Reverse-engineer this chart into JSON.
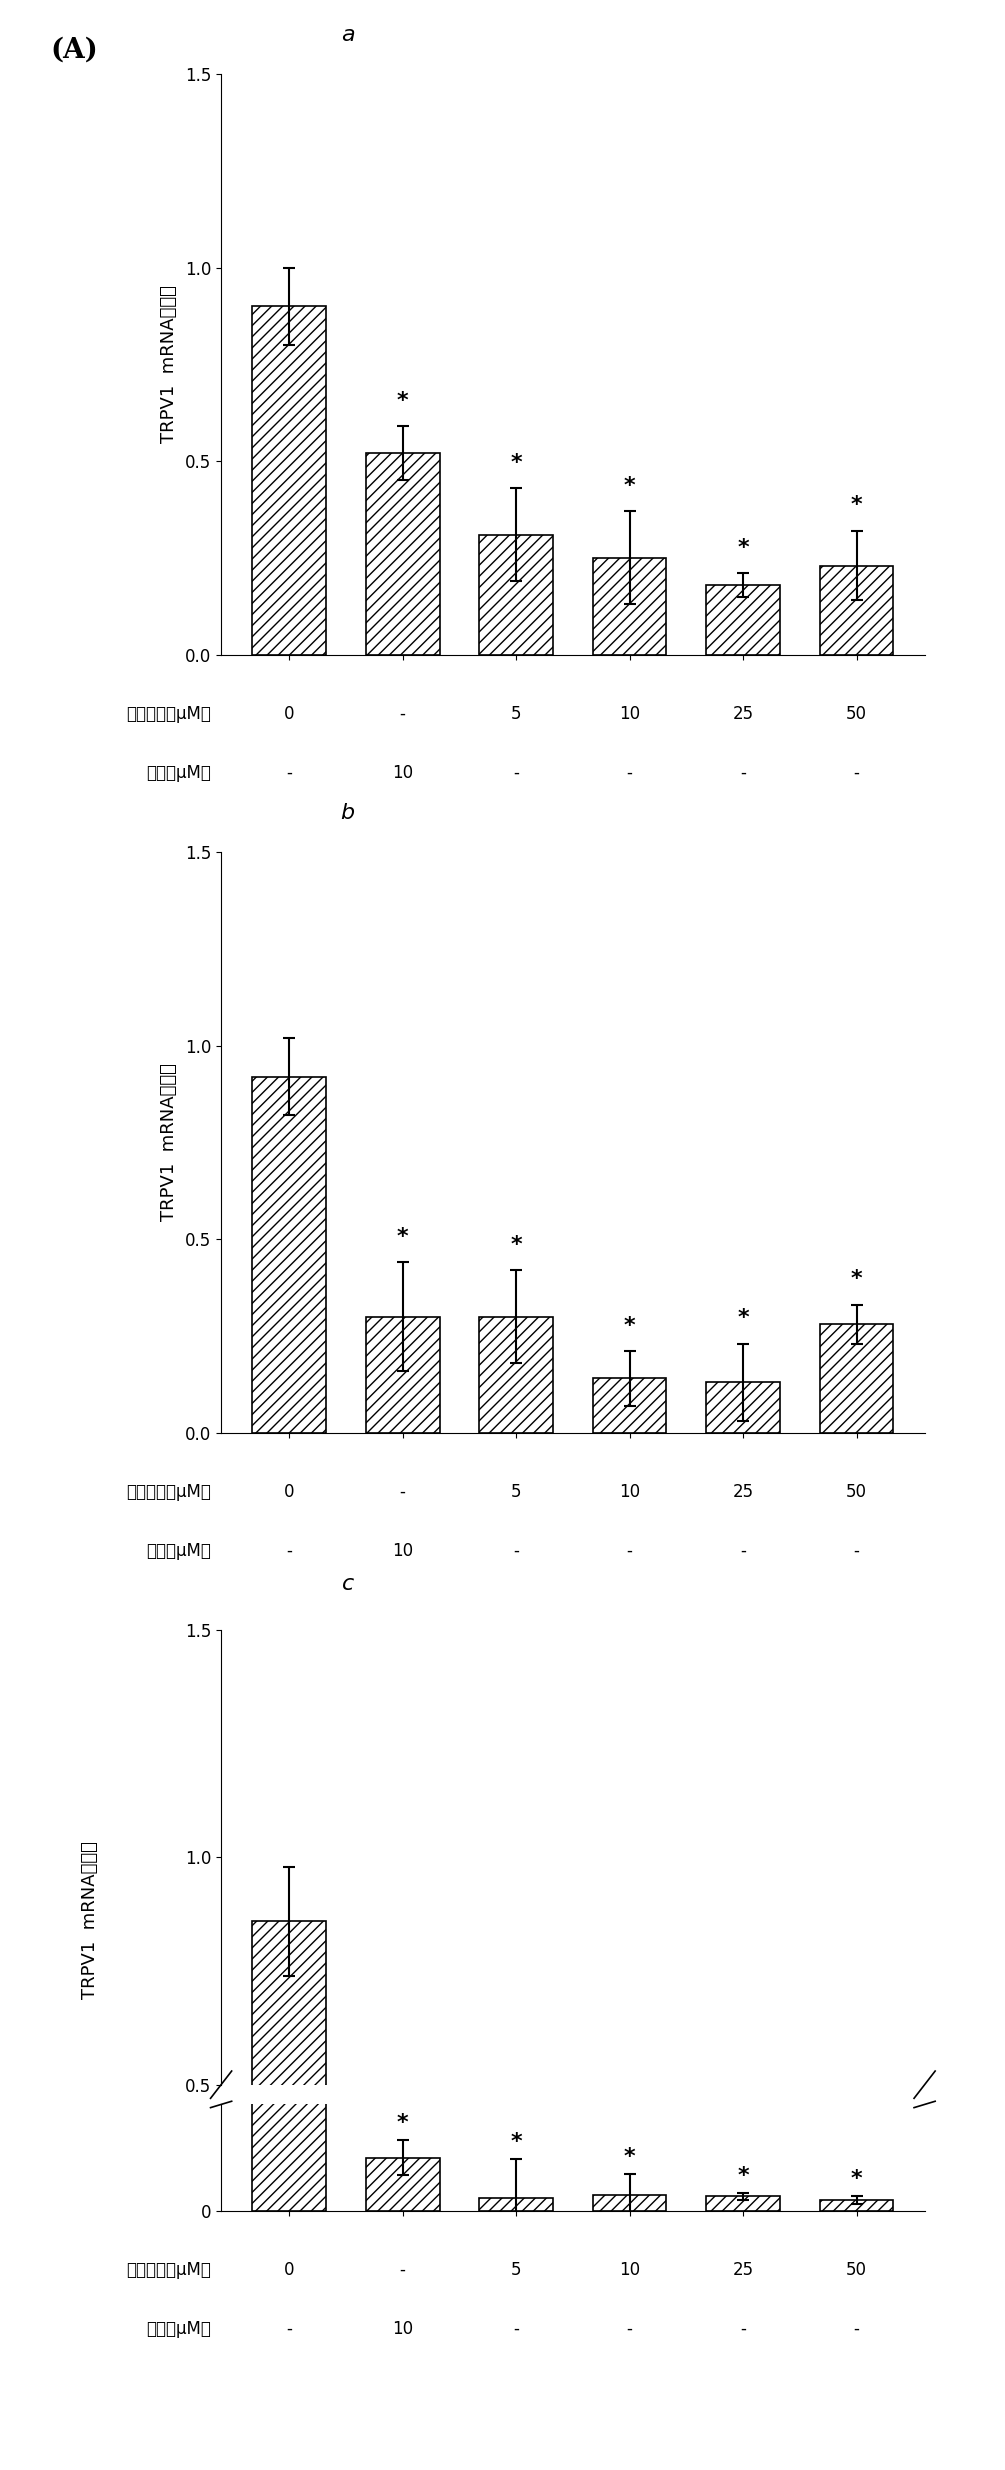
{
  "panel_label": "(A)",
  "subplot_labels": [
    "a",
    "b",
    "c"
  ],
  "x_labels_row1": [
    "0",
    "-",
    "5",
    "10",
    "25",
    "50"
  ],
  "x_labels_row2": [
    "-",
    "10",
    "-",
    "-",
    "-",
    "-"
  ],
  "xlabel_row1": "新生霆素（μM）",
  "xlabel_row2": "钓红（μM）",
  "ylabel": "TRPV1  mRNA表达量",
  "bar_color": "#404040",
  "hatch": "//",
  "charts": [
    {
      "values": [
        0.9,
        0.52,
        0.31,
        0.25,
        0.18,
        0.23
      ],
      "errors": [
        0.1,
        0.07,
        0.12,
        0.12,
        0.03,
        0.09
      ],
      "stars": [
        false,
        true,
        true,
        true,
        true,
        true
      ],
      "ylim": [
        0.0,
        1.5
      ],
      "yticks": [
        0.0,
        0.5,
        1.0,
        1.5
      ]
    },
    {
      "values": [
        0.92,
        0.3,
        0.3,
        0.14,
        0.13,
        0.28
      ],
      "errors": [
        0.1,
        0.14,
        0.12,
        0.07,
        0.1,
        0.05
      ],
      "stars": [
        false,
        true,
        true,
        true,
        true,
        true
      ],
      "ylim": [
        0.0,
        1.5
      ],
      "yticks": [
        0.0,
        0.5,
        1.0,
        1.5
      ]
    },
    {
      "values": [
        0.86,
        0.075,
        0.018,
        0.022,
        0.02,
        0.015
      ],
      "errors": [
        0.12,
        0.025,
        0.055,
        0.03,
        0.005,
        0.005
      ],
      "stars": [
        false,
        true,
        true,
        true,
        true,
        true
      ],
      "ylim": [
        0.0,
        1.5
      ],
      "yticks": [
        0.0,
        0.5,
        1.0,
        1.5
      ],
      "broken_axis": true,
      "break_lower": [
        0.0,
        0.15
      ],
      "break_upper": [
        0.5,
        1.5
      ]
    }
  ]
}
